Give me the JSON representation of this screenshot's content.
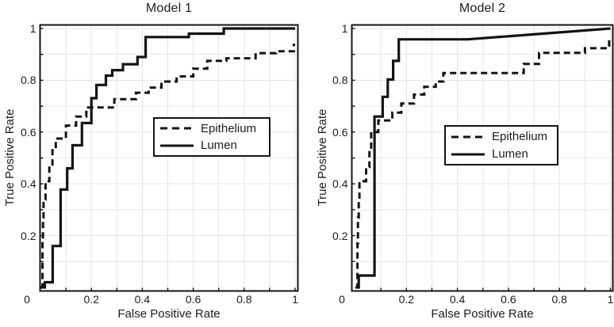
{
  "figure": {
    "background": "#ffffff",
    "line_color": "#141414",
    "grid_color": "#e6e6e6",
    "axis_color": "#141414",
    "text_color": "#1c1c1c"
  },
  "chart_data": [
    {
      "type": "line",
      "subtype": "roc-step-curve",
      "title": "Model 1",
      "xlabel": "False Positive Rate",
      "ylabel": "True Positive Rate",
      "xlim": [
        0,
        1
      ],
      "ylim": [
        0,
        1
      ],
      "xticks": [
        "0",
        "0.2",
        "0.4",
        "0.6",
        "0.8",
        "1"
      ],
      "yticks": [
        "0.2",
        "0.4",
        "0.6",
        "0.8",
        "1"
      ],
      "grid": "on, 0.1 spacing",
      "legend_position": "inside center-right",
      "legend": [
        "Epithelium",
        "Lumen"
      ],
      "series": [
        {
          "name": "Epithelium",
          "line_style": "dashed",
          "color": "#141414",
          "points": [
            [
              0,
              0
            ],
            [
              0.008,
              0
            ],
            [
              0.008,
              0.18
            ],
            [
              0.01,
              0.18
            ],
            [
              0.01,
              0.26
            ],
            [
              0.012,
              0.26
            ],
            [
              0.012,
              0.34
            ],
            [
              0.02,
              0.34
            ],
            [
              0.02,
              0.41
            ],
            [
              0.035,
              0.41
            ],
            [
              0.035,
              0.475
            ],
            [
              0.047,
              0.475
            ],
            [
              0.047,
              0.537
            ],
            [
              0.06,
              0.537
            ],
            [
              0.06,
              0.575
            ],
            [
              0.1,
              0.575
            ],
            [
              0.1,
              0.625
            ],
            [
              0.14,
              0.625
            ],
            [
              0.14,
              0.66
            ],
            [
              0.18,
              0.66
            ],
            [
              0.18,
              0.695
            ],
            [
              0.29,
              0.695
            ],
            [
              0.29,
              0.727
            ],
            [
              0.375,
              0.727
            ],
            [
              0.375,
              0.752
            ],
            [
              0.425,
              0.752
            ],
            [
              0.425,
              0.772
            ],
            [
              0.475,
              0.772
            ],
            [
              0.475,
              0.795
            ],
            [
              0.535,
              0.795
            ],
            [
              0.535,
              0.815
            ],
            [
              0.6,
              0.815
            ],
            [
              0.6,
              0.845
            ],
            [
              0.655,
              0.845
            ],
            [
              0.655,
              0.875
            ],
            [
              0.73,
              0.875
            ],
            [
              0.73,
              0.885
            ],
            [
              0.845,
              0.885
            ],
            [
              0.845,
              0.905
            ],
            [
              0.925,
              0.905
            ],
            [
              0.925,
              0.912
            ],
            [
              0.995,
              0.912
            ],
            [
              0.995,
              0.937
            ],
            [
              1,
              0.937
            ]
          ]
        },
        {
          "name": "Lumen",
          "line_style": "solid",
          "color": "#141414",
          "points": [
            [
              0,
              0
            ],
            [
              0.017,
              0
            ],
            [
              0.017,
              0.02
            ],
            [
              0.048,
              0.02
            ],
            [
              0.048,
              0.16
            ],
            [
              0.079,
              0.16
            ],
            [
              0.079,
              0.378
            ],
            [
              0.105,
              0.378
            ],
            [
              0.105,
              0.46
            ],
            [
              0.126,
              0.46
            ],
            [
              0.126,
              0.549
            ],
            [
              0.163,
              0.549
            ],
            [
              0.163,
              0.635
            ],
            [
              0.2,
              0.635
            ],
            [
              0.2,
              0.731
            ],
            [
              0.22,
              0.731
            ],
            [
              0.22,
              0.782
            ],
            [
              0.257,
              0.782
            ],
            [
              0.257,
              0.818
            ],
            [
              0.282,
              0.818
            ],
            [
              0.282,
              0.839
            ],
            [
              0.324,
              0.839
            ],
            [
              0.324,
              0.862
            ],
            [
              0.381,
              0.862
            ],
            [
              0.381,
              0.89
            ],
            [
              0.413,
              0.89
            ],
            [
              0.413,
              0.967
            ],
            [
              0.583,
              0.967
            ],
            [
              0.583,
              0.98
            ],
            [
              0.72,
              0.98
            ],
            [
              0.72,
              1
            ],
            [
              1,
              1
            ]
          ]
        }
      ]
    },
    {
      "type": "line",
      "subtype": "roc-step-curve",
      "title": "Model 2",
      "xlabel": "False Positive Rate",
      "ylabel": "True Positive Rate",
      "xlim": [
        0,
        1
      ],
      "ylim": [
        0,
        1
      ],
      "xticks": [
        "0",
        "0.2",
        "0.4",
        "0.6",
        "0.8",
        "1"
      ],
      "yticks": [
        "0.2",
        "0.4",
        "0.6",
        "0.8",
        "1"
      ],
      "grid": "on, 0.1 spacing",
      "legend_position": "inside center-right",
      "legend": [
        "Epithelium",
        "Lumen"
      ],
      "series": [
        {
          "name": "Epithelium",
          "line_style": "dashed",
          "color": "#141414",
          "points": [
            [
              0,
              0
            ],
            [
              0.008,
              0
            ],
            [
              0.008,
              0.17
            ],
            [
              0.01,
              0.17
            ],
            [
              0.01,
              0.27
            ],
            [
              0.013,
              0.27
            ],
            [
              0.013,
              0.34
            ],
            [
              0.016,
              0.34
            ],
            [
              0.016,
              0.41
            ],
            [
              0.042,
              0.41
            ],
            [
              0.042,
              0.465
            ],
            [
              0.055,
              0.465
            ],
            [
              0.055,
              0.53
            ],
            [
              0.062,
              0.53
            ],
            [
              0.062,
              0.6
            ],
            [
              0.09,
              0.6
            ],
            [
              0.09,
              0.645
            ],
            [
              0.145,
              0.645
            ],
            [
              0.145,
              0.675
            ],
            [
              0.18,
              0.675
            ],
            [
              0.18,
              0.71
            ],
            [
              0.23,
              0.71
            ],
            [
              0.23,
              0.745
            ],
            [
              0.27,
              0.745
            ],
            [
              0.27,
              0.775
            ],
            [
              0.315,
              0.775
            ],
            [
              0.315,
              0.795
            ],
            [
              0.345,
              0.795
            ],
            [
              0.345,
              0.828
            ],
            [
              0.66,
              0.828
            ],
            [
              0.66,
              0.863
            ],
            [
              0.72,
              0.863
            ],
            [
              0.72,
              0.906
            ],
            [
              0.9,
              0.906
            ],
            [
              0.9,
              0.924
            ],
            [
              0.995,
              0.924
            ],
            [
              0.995,
              0.955
            ],
            [
              1,
              0.955
            ]
          ]
        },
        {
          "name": "Lumen",
          "line_style": "solid",
          "color": "#141414",
          "points": [
            [
              0,
              0
            ],
            [
              0.013,
              0
            ],
            [
              0.013,
              0.046
            ],
            [
              0.075,
              0.046
            ],
            [
              0.075,
              0.66
            ],
            [
              0.107,
              0.66
            ],
            [
              0.107,
              0.736
            ],
            [
              0.127,
              0.736
            ],
            [
              0.127,
              0.803
            ],
            [
              0.148,
              0.803
            ],
            [
              0.148,
              0.875
            ],
            [
              0.17,
              0.875
            ],
            [
              0.17,
              0.958
            ],
            [
              0.44,
              0.958
            ],
            [
              1,
              1
            ]
          ]
        }
      ]
    }
  ]
}
